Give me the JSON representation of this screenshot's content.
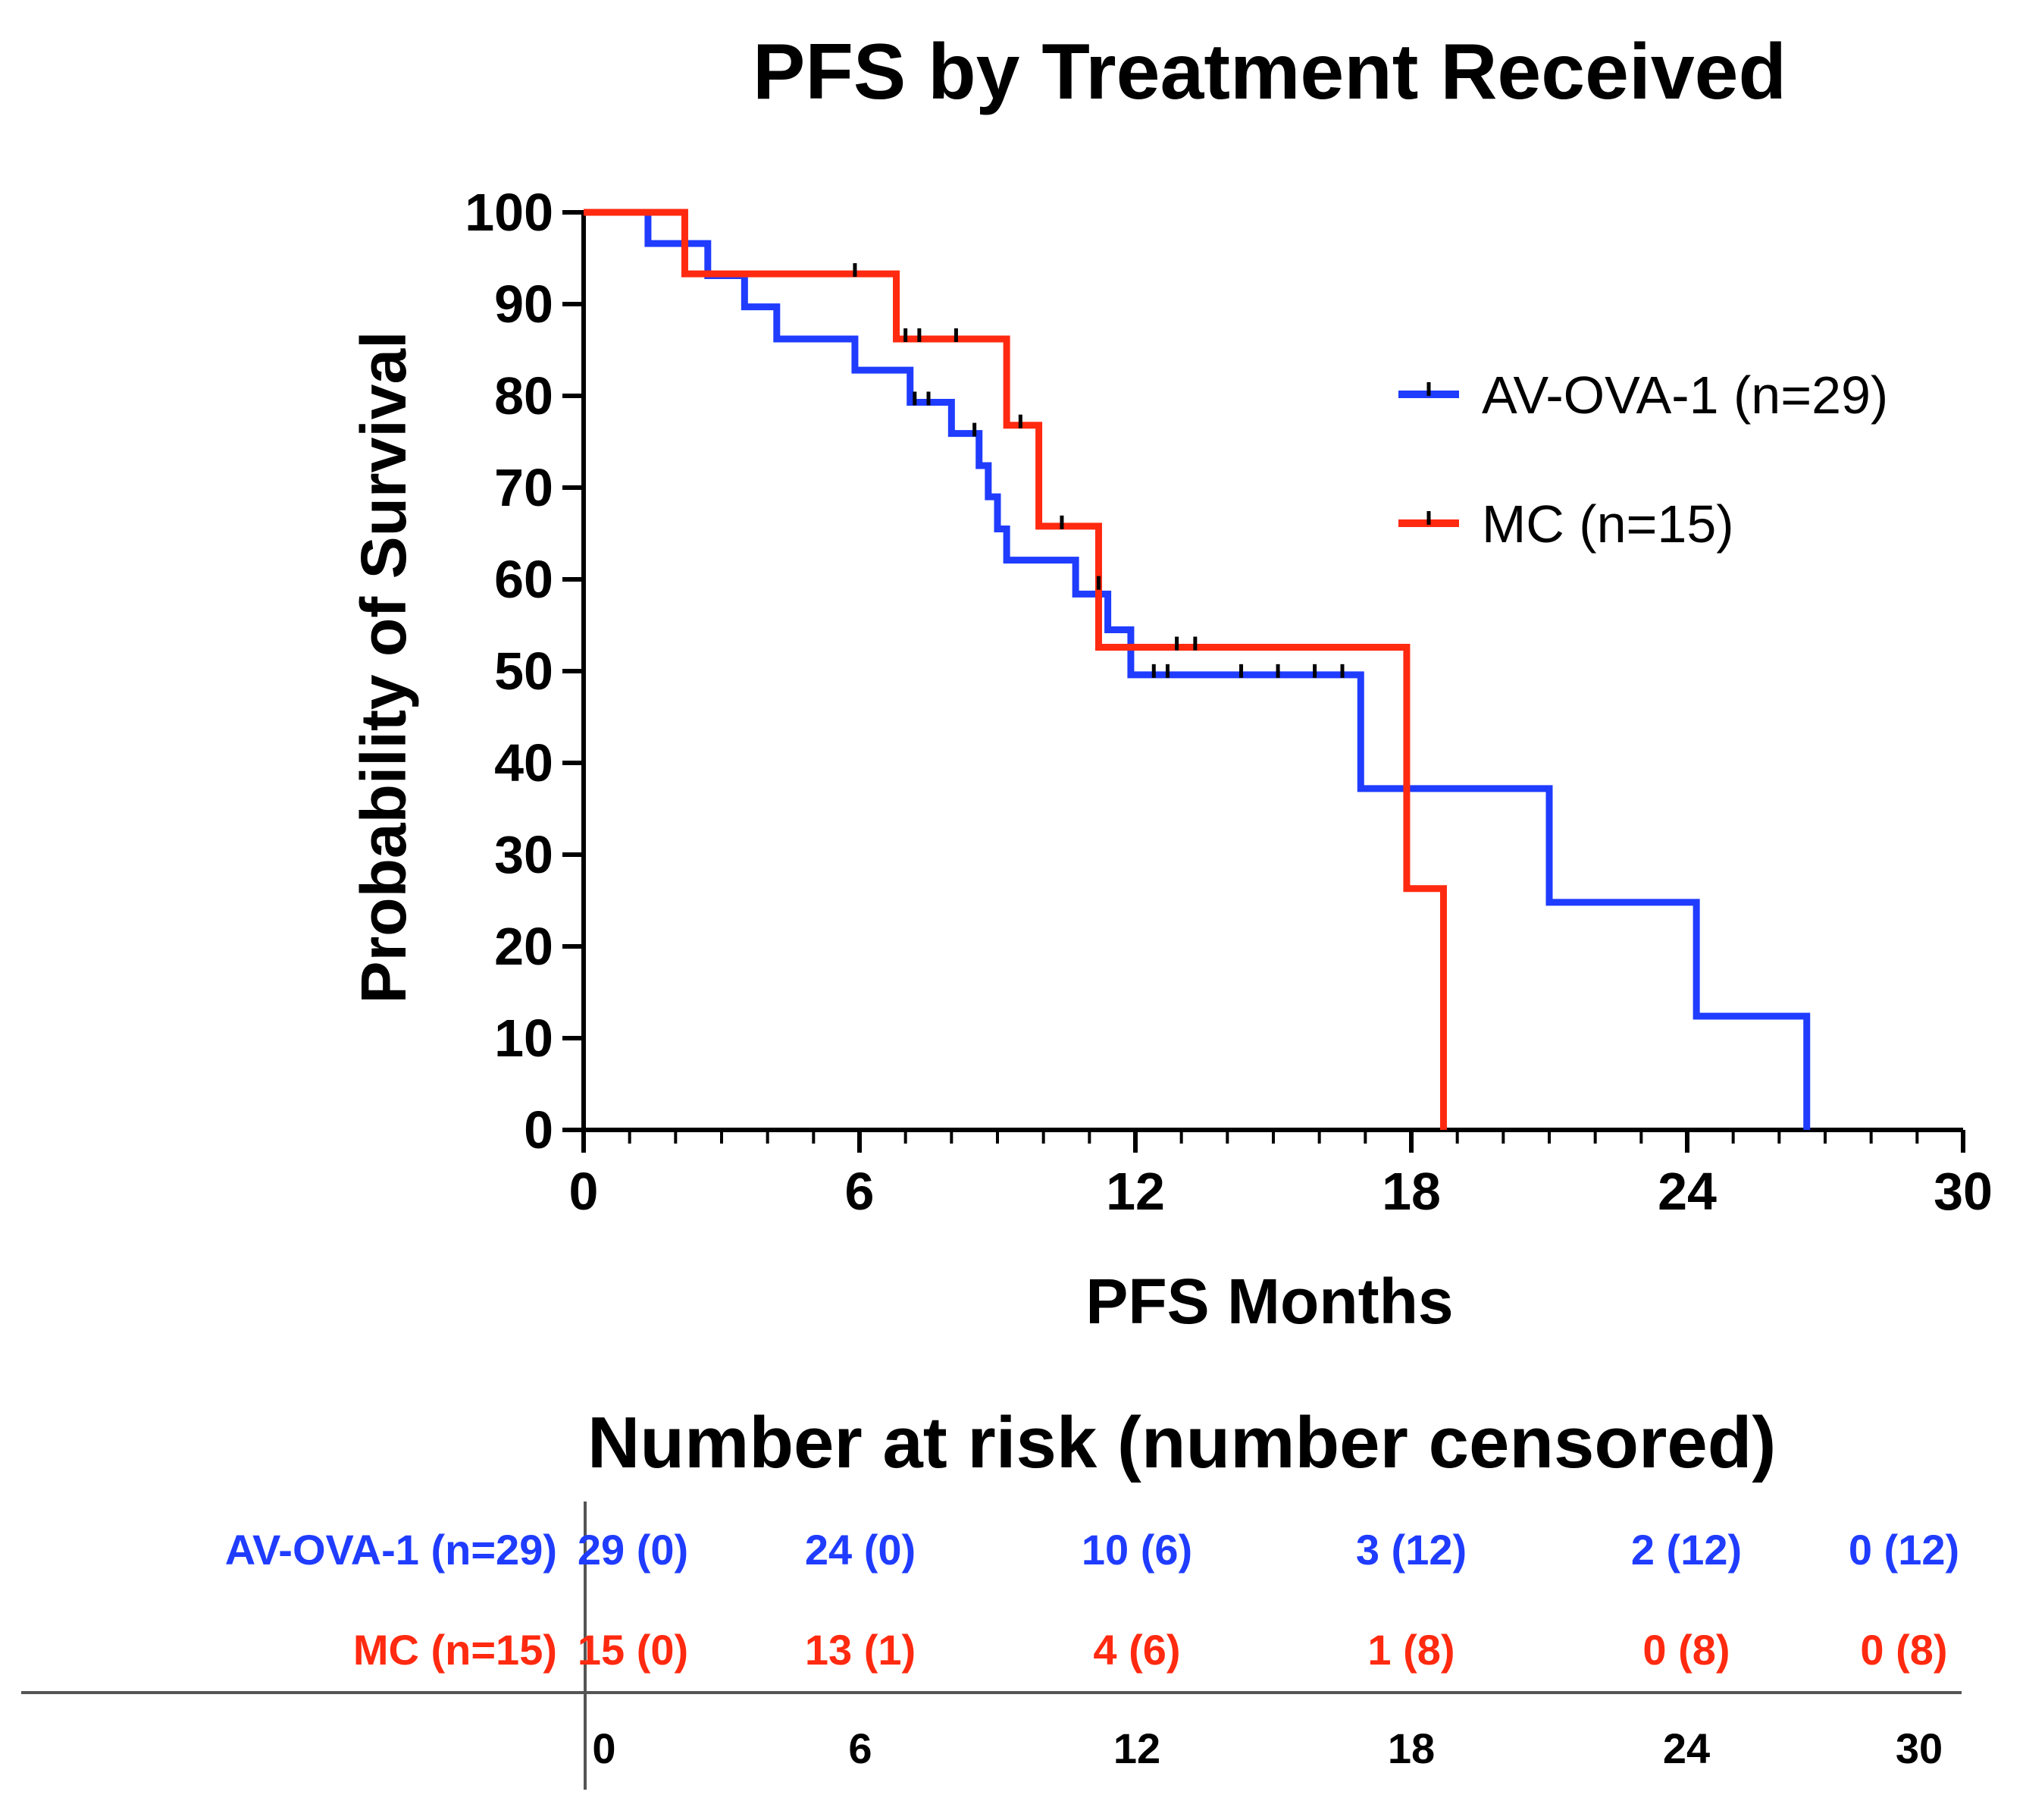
{
  "chart_data": {
    "type": "line",
    "subtype": "kaplan-meier",
    "title": "PFS by Treatment Received",
    "xlabel": "PFS Months",
    "ylabel": "Probability of Survival",
    "xlim": [
      0,
      30
    ],
    "ylim": [
      0,
      100
    ],
    "x_ticks": [
      0,
      6,
      12,
      18,
      24,
      30
    ],
    "y_ticks": [
      0,
      10,
      20,
      30,
      40,
      50,
      60,
      70,
      80,
      90,
      100
    ],
    "x_minor_step": 1,
    "legend_position": "right",
    "series": [
      {
        "name": "AV-OVA-1 (n=29)",
        "color": "#1f3cff",
        "steps": [
          [
            0,
            100
          ],
          [
            1.4,
            96.6
          ],
          [
            2.7,
            93.1
          ],
          [
            3.5,
            89.7
          ],
          [
            4.2,
            86.2
          ],
          [
            5.9,
            82.8
          ],
          [
            7.1,
            79.3
          ],
          [
            8.0,
            75.9
          ],
          [
            8.6,
            72.4
          ],
          [
            8.8,
            69.0
          ],
          [
            9.0,
            65.5
          ],
          [
            9.2,
            62.1
          ],
          [
            10.7,
            58.4
          ],
          [
            11.4,
            54.5
          ],
          [
            11.9,
            49.6
          ],
          [
            16.9,
            37.2
          ],
          [
            21.0,
            24.8
          ],
          [
            24.2,
            12.4
          ],
          [
            26.6,
            0
          ]
        ],
        "censor_marks": [
          [
            7.2,
            79.3
          ],
          [
            7.5,
            79.3
          ],
          [
            8.5,
            75.9
          ],
          [
            12.4,
            49.6
          ],
          [
            12.7,
            49.6
          ],
          [
            14.3,
            49.6
          ],
          [
            15.1,
            49.6
          ],
          [
            15.9,
            49.6
          ],
          [
            16.5,
            49.6
          ]
        ]
      },
      {
        "name": "MC (n=15)",
        "color": "#ff2a10",
        "steps": [
          [
            0,
            100
          ],
          [
            2.2,
            93.3
          ],
          [
            6.8,
            86.2
          ],
          [
            9.2,
            76.8
          ],
          [
            9.9,
            65.8
          ],
          [
            11.2,
            52.6
          ],
          [
            17.9,
            26.3
          ],
          [
            18.7,
            0
          ]
        ],
        "censor_marks": [
          [
            5.9,
            93.3
          ],
          [
            7.0,
            86.2
          ],
          [
            7.3,
            86.2
          ],
          [
            8.1,
            86.2
          ],
          [
            9.5,
            76.8
          ],
          [
            10.4,
            65.8
          ],
          [
            11.2,
            59.2
          ],
          [
            12.9,
            52.6
          ],
          [
            13.3,
            52.6
          ]
        ]
      }
    ],
    "risk_table": {
      "title": "Number at risk (number censored)",
      "times": [
        "0",
        "6",
        "12",
        "18",
        "24",
        "30"
      ],
      "rows": [
        {
          "label": "AV-OVA-1 (n=29)",
          "color": "#1f3cff",
          "values": [
            "29 (0)",
            "24 (0)",
            "10 (6)",
            "3 (12)",
            "2 (12)",
            "0 (12)"
          ]
        },
        {
          "label": "MC (n=15)",
          "color": "#ff2a10",
          "values": [
            "15 (0)",
            "13 (1)",
            "4 (6)",
            "1 (8)",
            "0 (8)",
            "0 (8)"
          ]
        }
      ]
    }
  }
}
